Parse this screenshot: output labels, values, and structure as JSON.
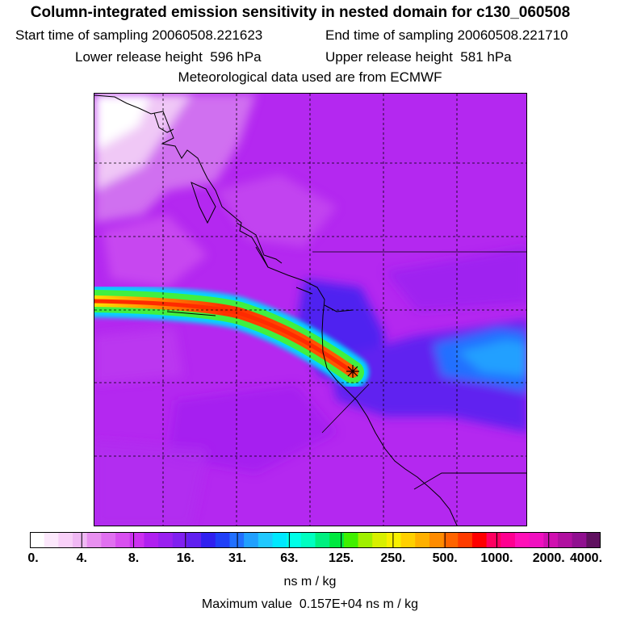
{
  "header": {
    "title": "Column-integrated emission sensitivity in nested domain for c130_060508",
    "start_label": "Start time of sampling",
    "start_value": "20060508.221623",
    "end_label": "End time of sampling",
    "end_value": "20060508.221710",
    "lower_label": "Lower release height",
    "lower_value": "596 hPa",
    "upper_label": "Upper release height",
    "upper_value": "581 hPa",
    "met_line": "Meteorological data used are from ECMWF"
  },
  "colorbar": {
    "ticks": [
      "0.",
      "4.",
      "8.",
      "16.",
      "31.",
      "63.",
      "125.",
      "250.",
      "500.",
      "1000.",
      "2000.",
      "4000."
    ],
    "colors": [
      "#ffffff",
      "#fce8fc",
      "#f8d0f8",
      "#f0b8f4",
      "#e890f0",
      "#e070f0",
      "#d850f0",
      "#cc30f0",
      "#b020f0",
      "#9a20f0",
      "#8020f0",
      "#6020f0",
      "#3020f0",
      "#2040f8",
      "#2070ff",
      "#20a0ff",
      "#20c8ff",
      "#00e8ff",
      "#00ffe8",
      "#00ffc0",
      "#00f080",
      "#00e840",
      "#40f000",
      "#a0f000",
      "#d8f000",
      "#f8f000",
      "#ffd000",
      "#ffb000",
      "#ff8c00",
      "#ff6400",
      "#ff3c00",
      "#ff0000",
      "#ff0060",
      "#ff0090",
      "#ff10b8",
      "#f010c0",
      "#d010b0",
      "#b010a0",
      "#901090",
      "#601060"
    ],
    "units": "ns m / kg"
  },
  "footer": {
    "max_label": "Maximum value",
    "max_value": "0.157E+04",
    "max_units": "ns m / kg"
  },
  "map": {
    "background_color": "#b428f0",
    "marker_symbol": "release-point"
  }
}
